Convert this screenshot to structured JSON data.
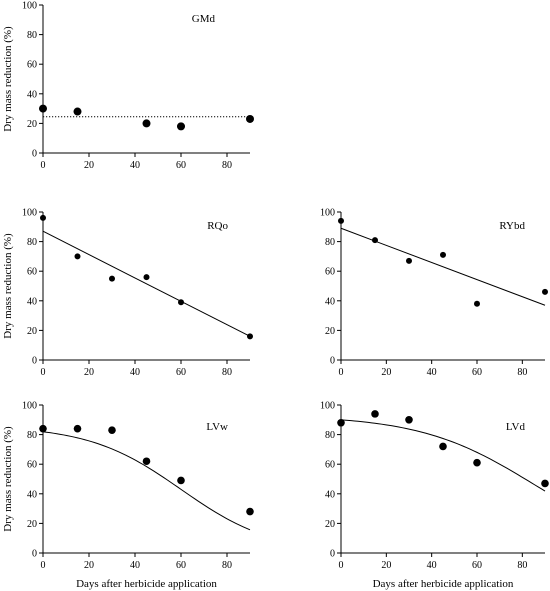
{
  "figure": {
    "ylabel": "Dry mass reduction (%)",
    "xlabel": "Days after herbicide application"
  },
  "chart_data": [
    {
      "id": "GMd",
      "type": "scatter",
      "label": "GMd",
      "x": [
        0,
        15,
        45,
        60,
        90
      ],
      "y": [
        30,
        28,
        20,
        18,
        23
      ],
      "fit": {
        "kind": "constant",
        "value": 24.5,
        "style": "dotted"
      },
      "xlim": [
        0,
        90
      ],
      "ylim": [
        0,
        100
      ],
      "xticks": [
        0,
        20,
        40,
        60,
        80
      ],
      "yticks": [
        0,
        20,
        40,
        60,
        80,
        100
      ],
      "xlabel": "",
      "ylabel": "Dry mass reduction (%)"
    },
    {
      "id": "RQo",
      "type": "scatter",
      "label": "RQo",
      "x": [
        0,
        15,
        30,
        45,
        60,
        90
      ],
      "y": [
        96,
        70,
        55,
        56,
        39,
        16
      ],
      "fit": {
        "kind": "linear",
        "points": [
          [
            0,
            87
          ],
          [
            90,
            16
          ]
        ],
        "style": "solid"
      },
      "xlim": [
        0,
        90
      ],
      "ylim": [
        0,
        100
      ],
      "xticks": [
        0,
        20,
        40,
        60,
        80
      ],
      "yticks": [
        0,
        20,
        40,
        60,
        80,
        100
      ],
      "xlabel": "",
      "ylabel": "Dry mass reduction (%)"
    },
    {
      "id": "RYbd",
      "type": "scatter",
      "label": "RYbd",
      "x": [
        0,
        15,
        30,
        45,
        60,
        90
      ],
      "y": [
        94,
        81,
        67,
        71,
        38,
        46
      ],
      "fit": {
        "kind": "linear",
        "points": [
          [
            0,
            89
          ],
          [
            90,
            37
          ]
        ],
        "style": "solid"
      },
      "xlim": [
        0,
        90
      ],
      "ylim": [
        0,
        100
      ],
      "xticks": [
        0,
        20,
        40,
        60,
        80
      ],
      "yticks": [
        0,
        20,
        40,
        60,
        80,
        100
      ],
      "xlabel": "",
      "ylabel": ""
    },
    {
      "id": "LVw",
      "type": "scatter",
      "label": "LVw",
      "x": [
        0,
        15,
        30,
        45,
        60,
        90
      ],
      "y": [
        84,
        84,
        83,
        62,
        49,
        28
      ],
      "fit": {
        "kind": "sigmoid",
        "top": 86,
        "x50": 60,
        "slope": 20,
        "bottom": 0,
        "style": "solid"
      },
      "xlim": [
        0,
        90
      ],
      "ylim": [
        0,
        100
      ],
      "xticks": [
        0,
        20,
        40,
        60,
        80
      ],
      "yticks": [
        0,
        20,
        40,
        60,
        80,
        100
      ],
      "xlabel": "Days after herbicide application",
      "ylabel": "Dry mass reduction (%)"
    },
    {
      "id": "LVd",
      "type": "scatter",
      "label": "LVd",
      "x": [
        0,
        15,
        30,
        45,
        60,
        90
      ],
      "y": [
        88,
        94,
        90,
        72,
        61,
        47
      ],
      "fit": {
        "kind": "sigmoid",
        "top": 93,
        "x50": 85,
        "slope": 25,
        "bottom": 0,
        "style": "solid"
      },
      "xlim": [
        0,
        90
      ],
      "ylim": [
        0,
        100
      ],
      "xticks": [
        0,
        20,
        40,
        60,
        80
      ],
      "yticks": [
        0,
        20,
        40,
        60,
        80,
        100
      ],
      "xlabel": "Days after herbicide application",
      "ylabel": ""
    }
  ]
}
